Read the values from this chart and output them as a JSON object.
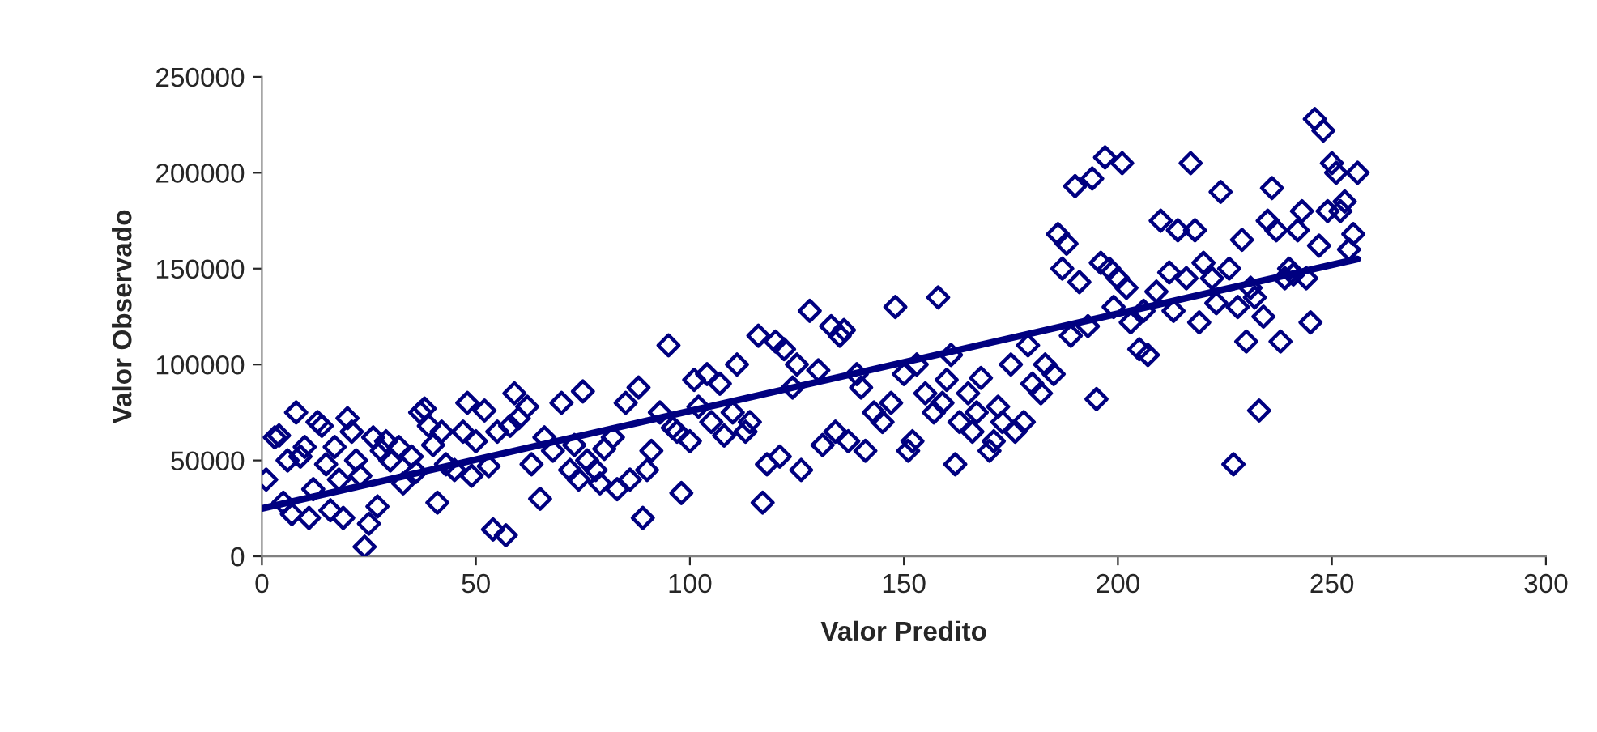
{
  "chart_data": {
    "type": "scatter",
    "xlabel": "Valor Predito",
    "ylabel": "Valor Observado",
    "xlim": [
      0,
      300
    ],
    "ylim": [
      0,
      250000
    ],
    "xticks": [
      0,
      50,
      100,
      150,
      200,
      250,
      300
    ],
    "yticks": [
      0,
      50000,
      100000,
      150000,
      200000,
      250000
    ],
    "grid": false,
    "legend": false,
    "marker": "diamond",
    "series": [
      {
        "color": "#000080",
        "x": [
          1,
          3,
          4,
          5,
          6,
          7,
          8,
          9,
          10,
          11,
          12,
          13,
          14,
          15,
          16,
          17,
          18,
          19,
          20,
          21,
          22,
          23,
          24,
          25,
          26,
          27,
          28,
          29,
          30,
          32,
          33,
          35,
          36,
          37,
          38,
          39,
          40,
          41,
          42,
          43,
          45,
          47,
          48,
          49,
          50,
          52,
          53,
          54,
          55,
          57,
          58,
          59,
          60,
          62,
          63,
          65,
          66,
          68,
          70,
          72,
          73,
          74,
          75,
          76,
          78,
          79,
          80,
          82,
          83,
          85,
          86,
          88,
          89,
          90,
          91,
          93,
          95,
          96,
          97,
          98,
          100,
          101,
          102,
          104,
          105,
          107,
          108,
          110,
          111,
          113,
          114,
          116,
          117,
          118,
          120,
          121,
          122,
          124,
          125,
          126,
          128,
          130,
          131,
          133,
          134,
          135,
          136,
          137,
          139,
          140,
          141,
          143,
          145,
          147,
          148,
          150,
          151,
          152,
          153,
          155,
          157,
          158,
          159,
          160,
          161,
          162,
          163,
          165,
          166,
          167,
          168,
          170,
          171,
          172,
          173,
          175,
          176,
          178,
          179,
          180,
          182,
          183,
          185,
          186,
          187,
          188,
          189,
          190,
          191,
          193,
          194,
          195,
          196,
          197,
          198,
          199,
          200,
          201,
          202,
          203,
          205,
          206,
          207,
          209,
          210,
          212,
          213,
          214,
          216,
          217,
          218,
          219,
          220,
          222,
          223,
          224,
          226,
          227,
          228,
          229,
          230,
          231,
          232,
          233,
          234,
          235,
          236,
          237,
          238,
          239,
          240,
          241,
          242,
          243,
          244,
          245,
          246,
          247,
          248,
          249,
          250,
          251,
          252,
          253,
          254,
          255,
          256
        ],
        "values": [
          40000,
          62000,
          63000,
          28000,
          50000,
          22000,
          75000,
          52000,
          57000,
          20000,
          35000,
          70000,
          68000,
          48000,
          24000,
          57000,
          40000,
          20000,
          72000,
          65000,
          50000,
          42000,
          5000,
          17000,
          62000,
          26000,
          55000,
          60000,
          50000,
          57000,
          38000,
          52000,
          44000,
          75000,
          77000,
          68000,
          58000,
          28000,
          65000,
          48000,
          45000,
          65000,
          80000,
          42000,
          60000,
          76000,
          47000,
          14000,
          65000,
          11000,
          68000,
          85000,
          72000,
          78000,
          48000,
          30000,
          62000,
          55000,
          80000,
          45000,
          58000,
          40000,
          86000,
          50000,
          45000,
          38000,
          56000,
          62000,
          35000,
          80000,
          40000,
          88000,
          20000,
          45000,
          55000,
          75000,
          110000,
          67000,
          65000,
          33000,
          60000,
          92000,
          78000,
          95000,
          70000,
          90000,
          63000,
          75000,
          100000,
          65000,
          70000,
          115000,
          28000,
          48000,
          112000,
          52000,
          108000,
          88000,
          100000,
          45000,
          128000,
          97000,
          58000,
          120000,
          65000,
          115000,
          118000,
          60000,
          95000,
          88000,
          55000,
          75000,
          70000,
          80000,
          130000,
          95000,
          55000,
          60000,
          100000,
          85000,
          75000,
          135000,
          80000,
          92000,
          105000,
          48000,
          70000,
          85000,
          65000,
          75000,
          93000,
          55000,
          60000,
          78000,
          70000,
          100000,
          65000,
          70000,
          110000,
          90000,
          85000,
          100000,
          95000,
          168000,
          150000,
          163000,
          115000,
          193000,
          143000,
          120000,
          197000,
          82000,
          153000,
          208000,
          150000,
          130000,
          145000,
          205000,
          140000,
          122000,
          108000,
          128000,
          105000,
          138000,
          175000,
          148000,
          128000,
          170000,
          145000,
          205000,
          170000,
          122000,
          153000,
          145000,
          132000,
          190000,
          150000,
          48000,
          130000,
          165000,
          112000,
          140000,
          135000,
          76000,
          125000,
          175000,
          192000,
          170000,
          112000,
          145000,
          150000,
          147000,
          170000,
          180000,
          145000,
          122000,
          228000,
          162000,
          222000,
          180000,
          205000,
          200000,
          180000,
          185000,
          160000,
          168000,
          200000
        ]
      },
      {
        "type": "line",
        "color": "#000080",
        "marker": "none",
        "line_style": "solid",
        "x": [
          0,
          256
        ],
        "values": [
          25000,
          155000
        ]
      }
    ]
  }
}
